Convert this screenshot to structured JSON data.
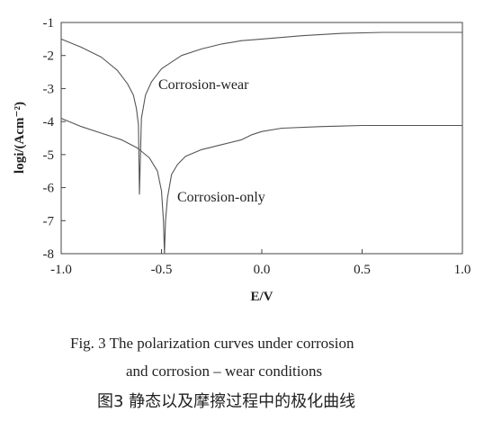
{
  "chart_data": {
    "type": "line",
    "ylabel": "logi/(Acm⁻²)",
    "xlabel": "E/V",
    "xlim": [
      -1.0,
      1.0
    ],
    "ylim": [
      -8,
      -1
    ],
    "xticks": [
      "-1.0",
      "-0.5",
      "0.0",
      "0.5",
      "1.0"
    ],
    "yticks": [
      "-1",
      "-2",
      "-3",
      "-4",
      "-5",
      "-6",
      "-7",
      "-8"
    ],
    "grid": false,
    "series": [
      {
        "name": "Corrosion-wear",
        "x": [
          -1.0,
          -0.9,
          -0.8,
          -0.72,
          -0.67,
          -0.64,
          -0.625,
          -0.615,
          -0.61,
          -0.6,
          -0.58,
          -0.55,
          -0.5,
          -0.4,
          -0.3,
          -0.2,
          -0.1,
          0.0,
          0.2,
          0.4,
          0.6,
          0.8,
          1.0
        ],
        "y": [
          -1.5,
          -1.75,
          -2.05,
          -2.45,
          -2.85,
          -3.2,
          -3.6,
          -4.1,
          -6.2,
          -3.9,
          -3.2,
          -2.8,
          -2.4,
          -2.0,
          -1.8,
          -1.65,
          -1.55,
          -1.5,
          -1.4,
          -1.33,
          -1.3,
          -1.3,
          -1.3
        ]
      },
      {
        "name": "Corrosion-only",
        "x": [
          -1.0,
          -0.9,
          -0.8,
          -0.7,
          -0.62,
          -0.56,
          -0.52,
          -0.5,
          -0.49,
          -0.485,
          -0.48,
          -0.47,
          -0.45,
          -0.42,
          -0.38,
          -0.3,
          -0.2,
          -0.1,
          -0.05,
          0.0,
          0.1,
          0.3,
          0.5,
          0.7,
          1.0
        ],
        "y": [
          -3.9,
          -4.15,
          -4.35,
          -4.55,
          -4.8,
          -5.1,
          -5.5,
          -6.1,
          -7.0,
          -8.0,
          -7.0,
          -6.3,
          -5.6,
          -5.3,
          -5.05,
          -4.85,
          -4.7,
          -4.55,
          -4.4,
          -4.3,
          -4.2,
          -4.15,
          -4.12,
          -4.12,
          -4.12
        ]
      }
    ]
  },
  "caption": {
    "en_line1": "Fig. 3    The polarization curves under corrosion",
    "en_line2": "and corrosion – wear conditions",
    "zh": "图3  静态以及摩擦过程中的极化曲线"
  }
}
